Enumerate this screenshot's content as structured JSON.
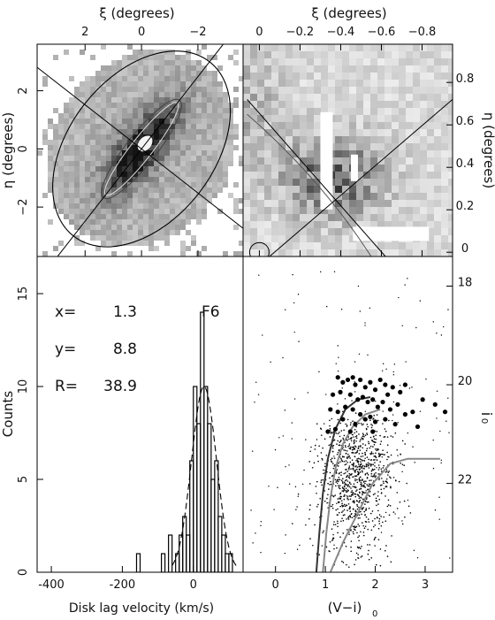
{
  "chart_data": [
    {
      "type": "scatter",
      "panel": "sky-map-wide",
      "xlabel": "ξ (degrees)",
      "ylabel": "η (degrees)",
      "xlim": [
        3.7,
        -3.6
      ],
      "ylim": [
        -3.7,
        3.6
      ],
      "xticks": [
        2,
        0,
        -2
      ],
      "yticks": [
        2,
        0,
        -2
      ],
      "xtick_labels": [
        "2",
        "0",
        "−2"
      ],
      "ytick_labels": [
        "2",
        "0",
        "−2"
      ],
      "major_axis_angle_deg": 52,
      "features": [
        "outer ellipse",
        "inner ellipses",
        "major and minor axis lines"
      ]
    },
    {
      "type": "scatter",
      "panel": "sky-map-zoom",
      "xlabel": "ξ (degrees)",
      "ylabel": "η (degrees)",
      "xlim": [
        0.08,
        -0.95
      ],
      "ylim": [
        -0.02,
        0.98
      ],
      "xticks": [
        0,
        -0.2,
        -0.4,
        -0.6,
        -0.8
      ],
      "yticks": [
        0,
        0.2,
        0.4,
        0.6,
        0.8
      ],
      "xtick_labels": [
        "0",
        "−0.2",
        "−0.4",
        "−0.6",
        "−0.8"
      ],
      "ytick_labels": [
        "0",
        "0.2",
        "0.4",
        "0.6",
        "0.8"
      ],
      "circle_marker": {
        "x": 0.0,
        "y": 0.0
      }
    },
    {
      "type": "histogram",
      "panel": "velocity-histogram",
      "xlabel": "Disk lag velocity (km/s)",
      "ylabel": "Counts",
      "xlim": [
        -440,
        140
      ],
      "ylim": [
        0,
        17
      ],
      "xticks": [
        -400,
        -200,
        0
      ],
      "yticks": [
        0,
        5,
        10,
        15
      ],
      "field": "F6",
      "x_value": "1.3",
      "y_value": "8.8",
      "R_value": "38.9",
      "x_label": "x=",
      "y_label": "y=",
      "R_label": "R=",
      "bins": [
        {
          "x0": -160,
          "x1": -150,
          "count": 1
        },
        {
          "x0": -90,
          "x1": -80,
          "count": 1
        },
        {
          "x0": -70,
          "x1": -60,
          "count": 2
        },
        {
          "x0": -50,
          "x1": -40,
          "count": 1
        },
        {
          "x0": -40,
          "x1": -30,
          "count": 2
        },
        {
          "x0": -30,
          "x1": -20,
          "count": 3
        },
        {
          "x0": -20,
          "x1": -10,
          "count": 2
        },
        {
          "x0": -10,
          "x1": 0,
          "count": 6
        },
        {
          "x0": 0,
          "x1": 10,
          "count": 10
        },
        {
          "x0": 10,
          "x1": 20,
          "count": 8
        },
        {
          "x0": 20,
          "x1": 30,
          "count": 14
        },
        {
          "x0": 30,
          "x1": 40,
          "count": 10
        },
        {
          "x0": 40,
          "x1": 50,
          "count": 8
        },
        {
          "x0": 50,
          "x1": 60,
          "count": 5
        },
        {
          "x0": 60,
          "x1": 70,
          "count": 6
        },
        {
          "x0": 70,
          "x1": 80,
          "count": 3
        },
        {
          "x0": 80,
          "x1": 90,
          "count": 2
        },
        {
          "x0": 90,
          "x1": 100,
          "count": 1
        },
        {
          "x0": 100,
          "x1": 110,
          "count": 1
        }
      ],
      "fit_curve": {
        "type": "gaussian",
        "mean": 30,
        "sigma": 35,
        "amplitude": 10
      }
    },
    {
      "type": "scatter",
      "panel": "color-magnitude-diagram",
      "xlabel": "(V−i)",
      "xlabel_sub": "0",
      "ylabel": "i",
      "ylabel_sub": "0",
      "xlim": [
        -0.65,
        3.55
      ],
      "ylim": [
        23.8,
        17.4
      ],
      "xticks": [
        0,
        1,
        2,
        3
      ],
      "yticks": [
        18,
        20,
        22
      ],
      "selected_stars": [
        [
          1.25,
          19.85
        ],
        [
          1.35,
          19.95
        ],
        [
          1.45,
          19.9
        ],
        [
          1.55,
          19.85
        ],
        [
          1.6,
          20.0
        ],
        [
          1.7,
          19.9
        ],
        [
          1.8,
          20.05
        ],
        [
          1.9,
          19.95
        ],
        [
          2.0,
          20.1
        ],
        [
          2.1,
          19.9
        ],
        [
          2.2,
          20.0
        ],
        [
          2.35,
          20.05
        ],
        [
          2.5,
          20.15
        ],
        [
          2.6,
          20.0
        ],
        [
          1.3,
          20.15
        ],
        [
          1.5,
          20.2
        ],
        [
          1.65,
          20.3
        ],
        [
          1.75,
          20.25
        ],
        [
          1.85,
          20.35
        ],
        [
          1.95,
          20.3
        ],
        [
          2.05,
          20.45
        ],
        [
          2.15,
          20.35
        ],
        [
          2.3,
          20.5
        ],
        [
          2.45,
          20.4
        ],
        [
          2.6,
          20.6
        ],
        [
          2.75,
          20.55
        ],
        [
          1.4,
          20.45
        ],
        [
          1.55,
          20.5
        ],
        [
          1.7,
          20.6
        ],
        [
          1.8,
          20.7
        ],
        [
          1.9,
          20.65
        ],
        [
          2.0,
          20.75
        ],
        [
          2.2,
          20.7
        ],
        [
          2.4,
          20.8
        ],
        [
          1.25,
          20.55
        ],
        [
          1.35,
          20.7
        ],
        [
          1.6,
          20.8
        ],
        [
          1.05,
          20.95
        ],
        [
          1.2,
          20.9
        ],
        [
          1.15,
          20.2
        ],
        [
          2.85,
          20.85
        ],
        [
          3.2,
          20.4
        ],
        [
          3.4,
          20.55
        ],
        [
          2.95,
          20.3
        ],
        [
          1.5,
          20.95
        ],
        [
          1.95,
          20.95
        ],
        [
          2.25,
          20.2
        ],
        [
          1.1,
          20.5
        ]
      ],
      "isochrones": [
        {
          "name": "",
          "color": "#333333",
          "points": [
            [
              0.82,
              23.8
            ],
            [
              0.88,
              23.0
            ],
            [
              0.95,
              22.2
            ],
            [
              1.05,
              21.5
            ],
            [
              1.2,
              20.9
            ],
            [
              1.4,
              20.5
            ],
            [
              1.65,
              20.3
            ],
            [
              1.9,
              20.25
            ]
          ]
        },
        {
          "name": "",
          "color": "#888888",
          "points": [
            [
              0.95,
              23.8
            ],
            [
              1.02,
              23.0
            ],
            [
              1.1,
              22.3
            ],
            [
              1.2,
              21.7
            ],
            [
              1.35,
              21.2
            ],
            [
              1.55,
              20.85
            ],
            [
              1.8,
              20.6
            ],
            [
              2.1,
              20.5
            ]
          ]
        },
        {
          "name": "",
          "color": "#888888",
          "points": [
            [
              1.1,
              23.8
            ],
            [
              1.35,
              23.2
            ],
            [
              1.65,
              22.6
            ],
            [
              1.95,
              22.0
            ],
            [
              2.3,
              21.6
            ],
            [
              2.65,
              21.5
            ],
            [
              3.3,
              21.5
            ]
          ]
        }
      ]
    }
  ]
}
